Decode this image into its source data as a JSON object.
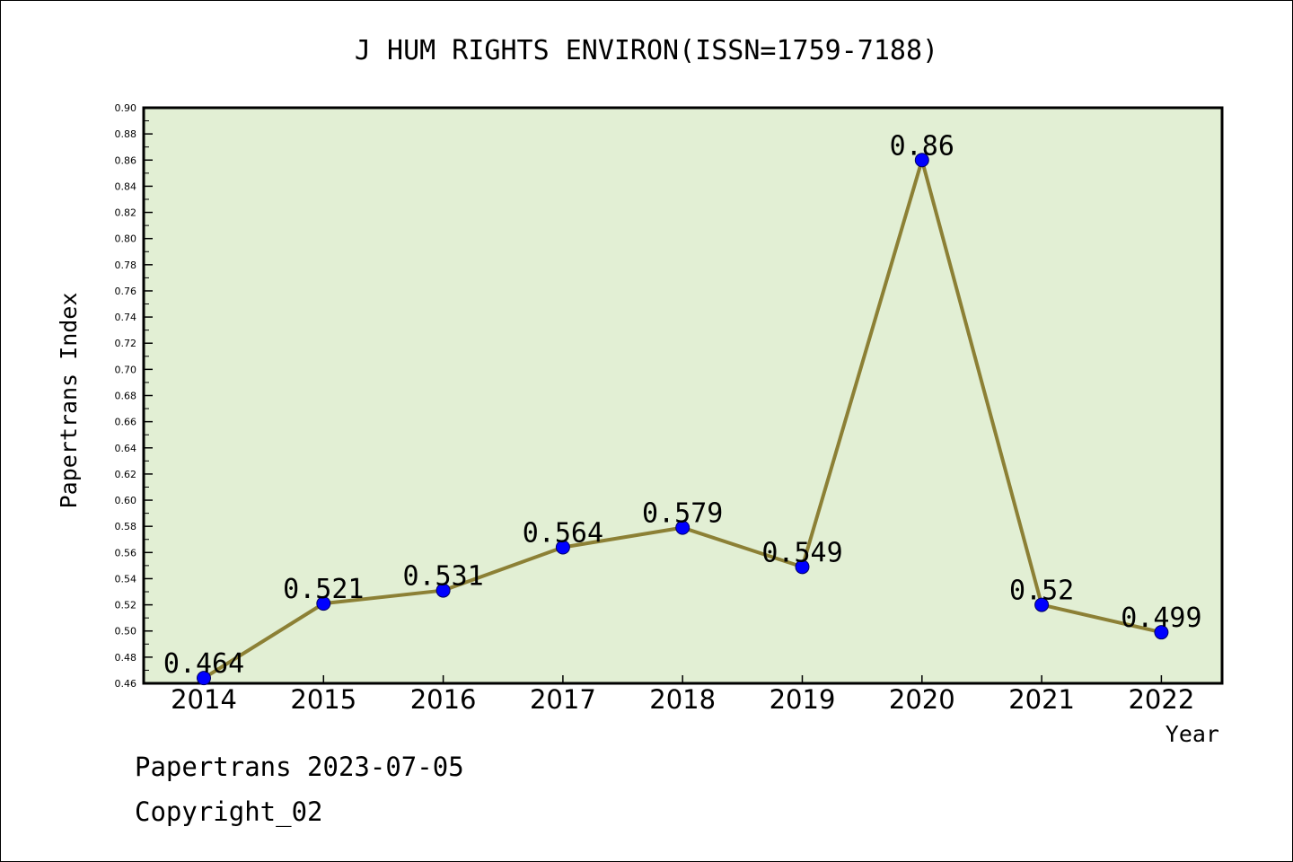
{
  "chart_data": {
    "type": "line",
    "title": "J HUM RIGHTS ENVIRON(ISSN=1759-7188)",
    "xlabel": "Year",
    "ylabel": "Papertrans Index",
    "categories": [
      "2014",
      "2015",
      "2016",
      "2017",
      "2018",
      "2019",
      "2020",
      "2021",
      "2022"
    ],
    "values": [
      0.464,
      0.521,
      0.531,
      0.564,
      0.579,
      0.549,
      0.86,
      0.52,
      0.499
    ],
    "value_labels": [
      "0.464",
      "0.521",
      "0.531",
      "0.564",
      "0.579",
      "0.549",
      "0.86",
      "0.52",
      "0.499"
    ],
    "ylim": [
      0.46,
      0.9
    ],
    "ytick_step": 0.02,
    "grid": false,
    "colors": {
      "plot_background": "#e2efd4",
      "line": "#8c8035",
      "marker": "#0000ff"
    }
  },
  "footer": {
    "line1": "Papertrans 2023-07-05",
    "line2": "Copyright_02"
  }
}
